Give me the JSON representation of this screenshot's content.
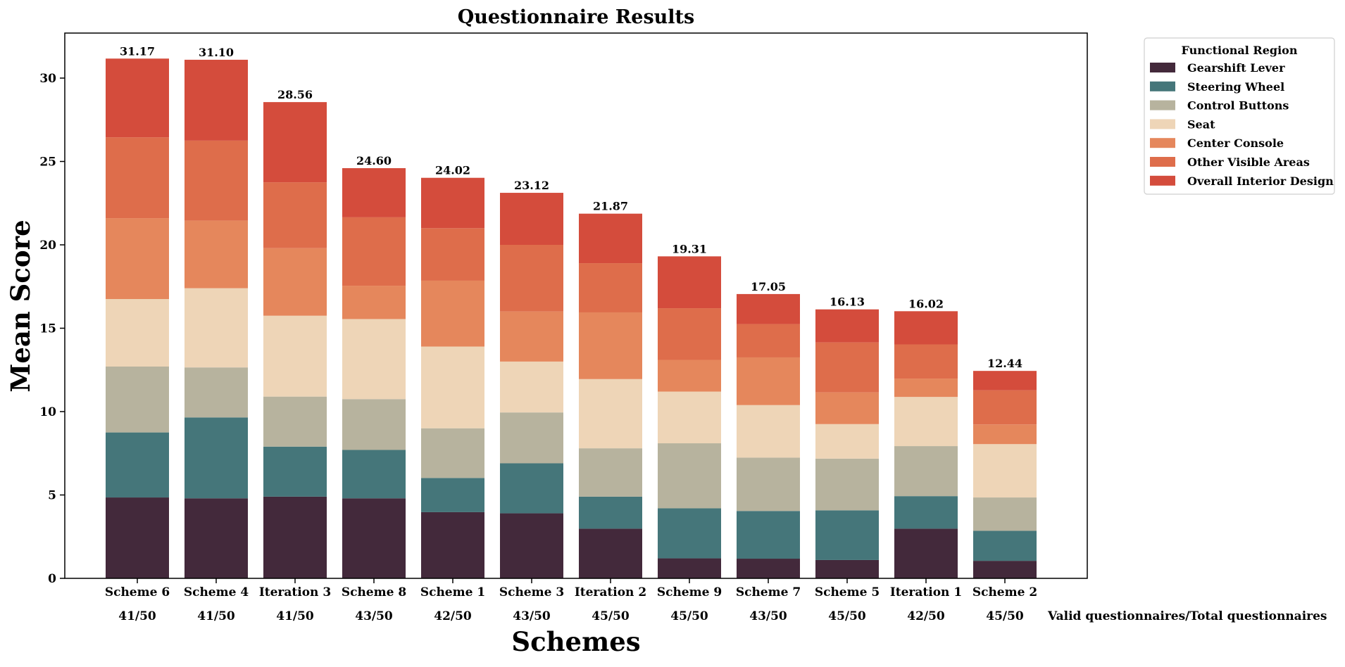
{
  "chart_data": {
    "type": "bar",
    "stacked": true,
    "title": "Questionnaire Results",
    "xlabel": "Schemes",
    "ylabel": "Mean Score",
    "ylim": [
      0,
      32.7
    ],
    "yticks": [
      0,
      5,
      10,
      15,
      20,
      25,
      30
    ],
    "categories": [
      "Scheme 6",
      "Scheme 4",
      "Iteration 3",
      "Scheme 8",
      "Scheme 1",
      "Scheme 3",
      "Iteration 2",
      "Scheme 9",
      "Scheme 7",
      "Scheme 5",
      "Iteration 1",
      "Scheme 2"
    ],
    "valid_counts": [
      "41/50",
      "41/50",
      "41/50",
      "43/50",
      "42/50",
      "43/50",
      "45/50",
      "45/50",
      "43/50",
      "45/50",
      "42/50",
      "45/50"
    ],
    "valid_counts_label": "Valid questionnaires/Total questionnaires",
    "totals": [
      "31.17",
      "31.10",
      "28.56",
      "24.60",
      "24.02",
      "23.12",
      "21.87",
      "19.31",
      "17.05",
      "16.13",
      "16.02",
      "12.44"
    ],
    "legend_title": "Functional Region",
    "legend_position": "top-right (outside)",
    "series": [
      {
        "name": "Gearshift Lever",
        "color": "#43293B",
        "values": [
          4.85,
          4.8,
          4.9,
          4.8,
          3.97,
          3.9,
          2.98,
          1.2,
          1.18,
          1.1,
          2.98,
          1.05
        ]
      },
      {
        "name": "Steering Wheel",
        "color": "#45767A",
        "values": [
          3.9,
          4.85,
          3.0,
          2.9,
          2.05,
          3.0,
          1.92,
          3.0,
          2.86,
          2.98,
          1.95,
          1.8
        ]
      },
      {
        "name": "Control Buttons",
        "color": "#B7B39E",
        "values": [
          3.95,
          3.0,
          3.0,
          3.05,
          2.98,
          3.05,
          2.9,
          3.9,
          3.2,
          3.1,
          3.0,
          2.0
        ]
      },
      {
        "name": "Seat",
        "color": "#EED5B7",
        "values": [
          4.05,
          4.75,
          4.85,
          4.8,
          4.9,
          3.05,
          4.15,
          3.1,
          3.15,
          2.07,
          2.95,
          3.2
        ]
      },
      {
        "name": "Center Console",
        "color": "#E5875C",
        "values": [
          4.85,
          4.05,
          4.05,
          2.0,
          3.95,
          3.0,
          4.0,
          1.9,
          2.86,
          1.9,
          1.1,
          1.18
        ]
      },
      {
        "name": "Other Visible Areas",
        "color": "#DE6D4B",
        "values": [
          4.85,
          4.8,
          3.95,
          4.1,
          3.15,
          4.0,
          2.95,
          3.1,
          2.0,
          3.0,
          2.05,
          2.05
        ]
      },
      {
        "name": "Overall Interior Design",
        "color": "#D44C3C",
        "values": [
          4.72,
          4.85,
          4.81,
          2.95,
          3.02,
          3.12,
          2.97,
          3.11,
          1.8,
          1.98,
          1.99,
          1.16
        ]
      }
    ]
  }
}
